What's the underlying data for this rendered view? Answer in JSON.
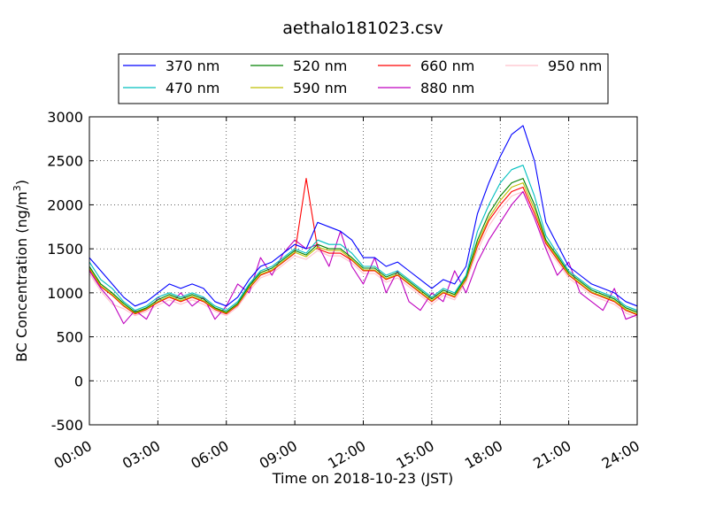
{
  "chart_data": {
    "type": "line",
    "title": "aethalo181023.csv",
    "xlabel": "Time on 2018-10-23 (JST)",
    "ylabel": "BC Concentration (ng/m",
    "ylabel_sup": "3",
    "ylabel_end": ")",
    "xlim": [
      0,
      24
    ],
    "ylim": [
      -500,
      3000
    ],
    "x_ticks": [
      0,
      3,
      6,
      9,
      12,
      15,
      18,
      21,
      24
    ],
    "x_tick_labels": [
      "00:00",
      "03:00",
      "06:00",
      "09:00",
      "12:00",
      "15:00",
      "18:00",
      "21:00",
      "24:00"
    ],
    "y_ticks": [
      -500,
      0,
      500,
      1000,
      1500,
      2000,
      2500,
      3000
    ],
    "y_tick_labels": [
      "-500",
      "0",
      "500",
      "1000",
      "1500",
      "2000",
      "2500",
      "3000"
    ],
    "grid": true,
    "grid_style": "dotted",
    "legend_position": "top-center",
    "legend_columns": 4,
    "x": [
      0,
      0.5,
      1,
      1.5,
      2,
      2.5,
      3,
      3.5,
      4,
      4.5,
      5,
      5.5,
      6,
      6.5,
      7,
      7.5,
      8,
      8.5,
      9,
      9.5,
      10,
      10.5,
      11,
      11.5,
      12,
      12.5,
      13,
      13.5,
      14,
      14.5,
      15,
      15.5,
      16,
      16.5,
      17,
      17.5,
      18,
      18.5,
      19,
      19.5,
      20,
      20.5,
      21,
      21.5,
      22,
      22.5,
      23,
      23.5,
      24
    ],
    "series": [
      {
        "name": "370 nm",
        "color": "#0000ff",
        "values": [
          1400,
          1250,
          1100,
          950,
          850,
          900,
          1000,
          1100,
          1050,
          1100,
          1050,
          900,
          850,
          950,
          1150,
          1300,
          1350,
          1450,
          1550,
          1500,
          1800,
          1750,
          1700,
          1600,
          1400,
          1400,
          1300,
          1350,
          1250,
          1150,
          1050,
          1150,
          1100,
          1300,
          1900,
          2250,
          2550,
          2800,
          2900,
          2500,
          1800,
          1550,
          1300,
          1200,
          1100,
          1050,
          1000,
          900,
          850
        ]
      },
      {
        "name": "470 nm",
        "color": "#00bfbf",
        "values": [
          1350,
          1150,
          1050,
          900,
          800,
          850,
          950,
          1000,
          950,
          1000,
          950,
          850,
          800,
          900,
          1100,
          1250,
          1300,
          1400,
          1500,
          1450,
          1600,
          1550,
          1550,
          1450,
          1300,
          1300,
          1200,
          1250,
          1150,
          1050,
          950,
          1050,
          1000,
          1200,
          1700,
          2000,
          2250,
          2400,
          2450,
          2100,
          1650,
          1450,
          1250,
          1150,
          1050,
          1000,
          950,
          850,
          800
        ]
      },
      {
        "name": "520 nm",
        "color": "#008000",
        "values": [
          1300,
          1100,
          1000,
          880,
          780,
          830,
          920,
          980,
          930,
          980,
          930,
          830,
          780,
          880,
          1080,
          1230,
          1280,
          1380,
          1480,
          1430,
          1550,
          1500,
          1500,
          1400,
          1280,
          1280,
          1180,
          1230,
          1130,
          1030,
          930,
          1030,
          980,
          1180,
          1600,
          1900,
          2100,
          2250,
          2300,
          2000,
          1600,
          1420,
          1230,
          1130,
          1030,
          980,
          930,
          830,
          780
        ]
      },
      {
        "name": "590 nm",
        "color": "#bfbf00",
        "values": [
          1280,
          1080,
          980,
          860,
          770,
          820,
          900,
          960,
          910,
          960,
          910,
          820,
          770,
          870,
          1060,
          1210,
          1260,
          1360,
          1460,
          1410,
          1520,
          1480,
          1480,
          1380,
          1260,
          1260,
          1160,
          1210,
          1110,
          1010,
          910,
          1010,
          960,
          1160,
          1560,
          1850,
          2050,
          2200,
          2250,
          1950,
          1580,
          1400,
          1210,
          1110,
          1010,
          960,
          910,
          810,
          760
        ]
      },
      {
        "name": "660 nm",
        "color": "#ff0000",
        "values": [
          1270,
          1070,
          970,
          850,
          760,
          810,
          890,
          950,
          900,
          950,
          900,
          810,
          760,
          860,
          1050,
          1200,
          1250,
          1350,
          1450,
          2300,
          1500,
          1450,
          1450,
          1370,
          1250,
          1250,
          1150,
          1200,
          1100,
          1000,
          900,
          1000,
          950,
          1150,
          1530,
          1820,
          2000,
          2150,
          2200,
          1900,
          1560,
          1380,
          1200,
          1100,
          1000,
          950,
          900,
          800,
          750
        ]
      },
      {
        "name": "880 nm",
        "color": "#bf00bf",
        "values": [
          1250,
          1050,
          900,
          650,
          800,
          700,
          950,
          850,
          1000,
          850,
          950,
          700,
          850,
          1100,
          1000,
          1400,
          1200,
          1450,
          1600,
          1500,
          1550,
          1300,
          1700,
          1300,
          1100,
          1400,
          1000,
          1250,
          900,
          800,
          1000,
          900,
          1250,
          1000,
          1350,
          1600,
          1800,
          2000,
          2150,
          1850,
          1500,
          1200,
          1350,
          1000,
          900,
          800,
          1050,
          700,
          750
        ]
      },
      {
        "name": "950 nm",
        "color": "#ffc0cb",
        "values": [
          1220,
          1020,
          870,
          820,
          740,
          790,
          860,
          920,
          870,
          920,
          870,
          790,
          740,
          840,
          1020,
          1170,
          1220,
          1320,
          1420,
          1380,
          1480,
          1420,
          1420,
          1340,
          1220,
          1220,
          1120,
          1170,
          1070,
          970,
          870,
          970,
          920,
          1120,
          1480,
          1760,
          1950,
          2100,
          2150,
          1850,
          1520,
          1350,
          1170,
          1070,
          970,
          920,
          870,
          770,
          720
        ]
      }
    ]
  }
}
